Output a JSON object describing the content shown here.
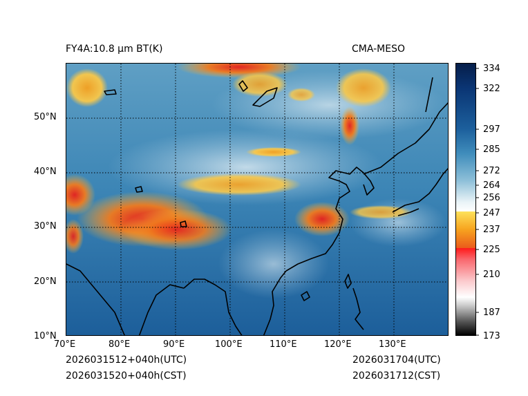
{
  "header": {
    "product": "FY4A:10.8 µm BT(K)",
    "model": "CMA-MESO"
  },
  "footer": {
    "init_utc": "2026031512+040h(UTC)",
    "init_cst": "2026031520+040h(CST)",
    "valid_utc": "2026031704(UTC)",
    "valid_cst": "2026031712(CST)"
  },
  "map": {
    "lon_range": [
      70,
      140
    ],
    "lat_range": [
      10,
      60
    ],
    "lon_ticks": [
      "70°E",
      "80°E",
      "90°E",
      "100°E",
      "110°E",
      "120°E",
      "130°E"
    ],
    "lat_ticks": [
      "10°N",
      "20°N",
      "30°N",
      "40°N",
      "50°N"
    ]
  },
  "colorbar": {
    "ticks": [
      "334",
      "322",
      "297",
      "285",
      "272",
      "264",
      "256",
      "247",
      "237",
      "225",
      "210",
      "187",
      "173"
    ]
  }
}
